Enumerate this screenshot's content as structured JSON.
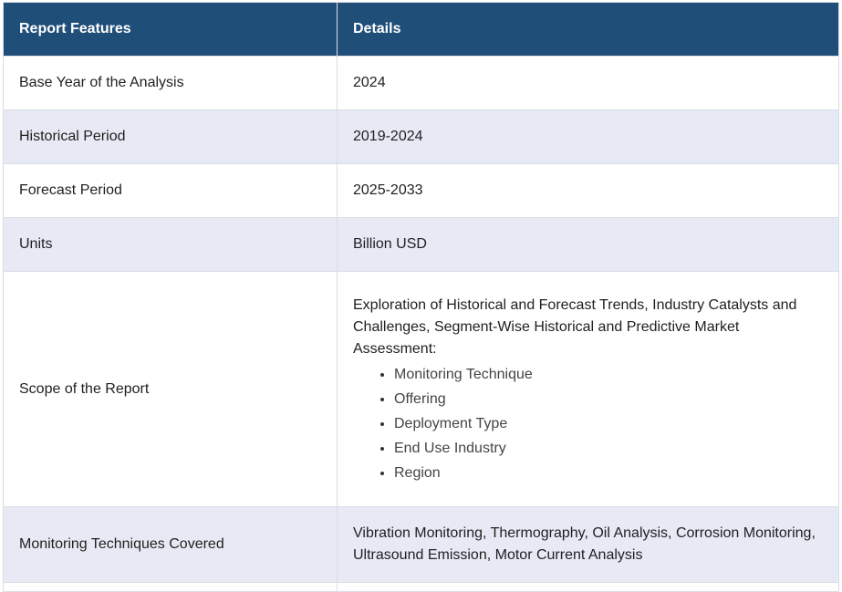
{
  "table": {
    "headers": [
      "Report Features",
      "Details"
    ],
    "rows": [
      {
        "feature": "Base Year of the Analysis",
        "detail": "2024"
      },
      {
        "feature": "Historical Period",
        "detail": "2019-2024"
      },
      {
        "feature": "Forecast Period",
        "detail": "2025-2033"
      },
      {
        "feature": "Units",
        "detail": "Billion USD"
      }
    ],
    "scope": {
      "feature": "Scope of the Report",
      "text": "Exploration of Historical and Forecast Trends, Industry Catalysts and Challenges, Segment-Wise Historical and Predictive Market Assessment:",
      "items": [
        "Monitoring Technique",
        "Offering",
        "Deployment Type",
        "End Use Industry",
        "Region"
      ]
    },
    "techniques": {
      "feature": "Monitoring Techniques Covered",
      "detail": "Vibration Monitoring, Thermography, Oil Analysis, Corrosion Monitoring, Ultrasound Emission, Motor Current Analysis"
    },
    "colors": {
      "header_bg": "#1f4e79",
      "header_text": "#ffffff",
      "stripe_bg": "#e7eaf5",
      "border": "#d9dde6"
    }
  }
}
